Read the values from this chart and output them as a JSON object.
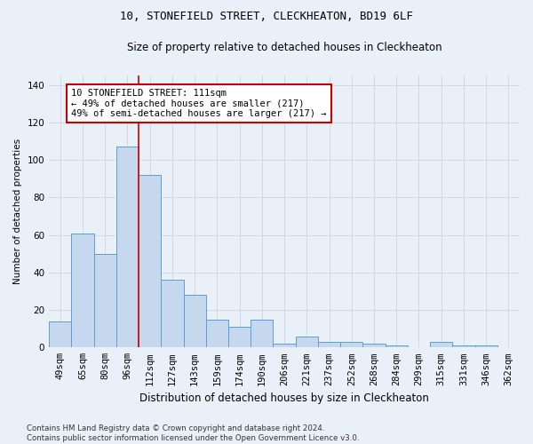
{
  "title": "10, STONEFIELD STREET, CLECKHEATON, BD19 6LF",
  "subtitle": "Size of property relative to detached houses in Cleckheaton",
  "xlabel": "Distribution of detached houses by size in Cleckheaton",
  "ylabel": "Number of detached properties",
  "categories": [
    "49sqm",
    "65sqm",
    "80sqm",
    "96sqm",
    "112sqm",
    "127sqm",
    "143sqm",
    "159sqm",
    "174sqm",
    "190sqm",
    "206sqm",
    "221sqm",
    "237sqm",
    "252sqm",
    "268sqm",
    "284sqm",
    "299sqm",
    "315sqm",
    "331sqm",
    "346sqm",
    "362sqm"
  ],
  "values": [
    14,
    61,
    50,
    107,
    92,
    36,
    28,
    15,
    11,
    15,
    2,
    6,
    3,
    3,
    2,
    1,
    0,
    3,
    1,
    1,
    0
  ],
  "bar_color": "#c5d8ed",
  "bar_edge_color": "#5a9fd4",
  "grid_color": "#d0d8e8",
  "background_color": "#eaf0f8",
  "vline_x_index": 4,
  "vline_color": "#cc0000",
  "annotation_text": "10 STONEFIELD STREET: 111sqm\n← 49% of detached houses are smaller (217)\n49% of semi-detached houses are larger (217) →",
  "annotation_box_color": "#ffffff",
  "annotation_border_color": "#cc0000",
  "ylim": [
    0,
    145
  ],
  "yticks": [
    0,
    20,
    40,
    60,
    80,
    100,
    120,
    140
  ],
  "footer": "Contains HM Land Registry data © Crown copyright and database right 2024.\nContains public sector information licensed under the Open Government Licence v3.0.",
  "title_fontsize": 9,
  "subtitle_fontsize": 8.5,
  "xlabel_fontsize": 8.5,
  "ylabel_fontsize": 7.5,
  "tick_fontsize": 7.5,
  "footer_fontsize": 6.2
}
